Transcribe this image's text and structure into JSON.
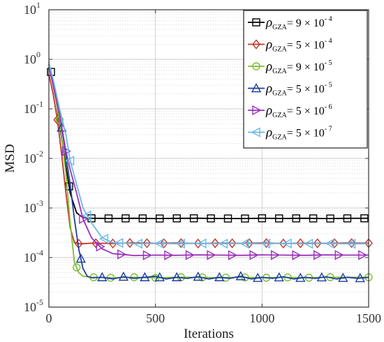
{
  "chart_data": {
    "type": "line",
    "xlabel": "Iterations",
    "ylabel": "MSD",
    "title": "",
    "xlim": [
      0,
      1500
    ],
    "ylim": [
      1e-05,
      10
    ],
    "yscale": "log",
    "grid": true,
    "legend_position": "top-right",
    "x_ticks": [
      {
        "value": 0,
        "label": "0"
      },
      {
        "value": 500,
        "label": "500"
      },
      {
        "value": 1000,
        "label": "1000"
      },
      {
        "value": 1500,
        "label": "1500"
      }
    ],
    "y_ticks": [
      {
        "value": 1e-05,
        "base": "10",
        "exp": "-5"
      },
      {
        "value": 0.0001,
        "base": "10",
        "exp": "-4"
      },
      {
        "value": 0.001,
        "base": "10",
        "exp": "-3"
      },
      {
        "value": 0.01,
        "base": "10",
        "exp": "-2"
      },
      {
        "value": 0.1,
        "base": "10",
        "exp": "-1"
      },
      {
        "value": 1,
        "base": "10",
        "exp": "0"
      },
      {
        "value": 10,
        "base": "10",
        "exp": "1"
      }
    ],
    "series": [
      {
        "name": "ρGZA = 9 × 10^-4",
        "label": {
          "rho": "ρ",
          "sub": "GZA",
          "mid": "= 9 ×  10",
          "exp": "- 4"
        },
        "color": "#000000",
        "marker": "square",
        "x": [
          0,
          5,
          20,
          40,
          60,
          80,
          100,
          130,
          160,
          200,
          300,
          400,
          500,
          600,
          700,
          800,
          900,
          1000,
          1100,
          1200,
          1300,
          1400,
          1500
        ],
        "y": [
          0.8,
          0.7,
          0.35,
          0.1,
          0.025,
          0.007,
          0.002,
          0.0008,
          0.00064,
          0.00062,
          0.000615,
          0.00062,
          0.000612,
          0.000618,
          0.00062,
          0.000615,
          0.000612,
          0.00062,
          0.000615,
          0.00062,
          0.000612,
          0.000618,
          0.00062
        ]
      },
      {
        "name": "ρGZA = 5 × 10^-4",
        "label": {
          "rho": "ρ",
          "sub": "GZA",
          "mid": "= 5 ×  10",
          "exp": "- 4"
        },
        "color": "#c0392b",
        "marker": "diamond",
        "x": [
          0,
          5,
          20,
          40,
          60,
          80,
          100,
          120,
          140,
          160,
          200,
          300,
          400,
          500,
          600,
          700,
          800,
          900,
          1000,
          1100,
          1200,
          1300,
          1400,
          1500
        ],
        "y": [
          0.5,
          0.4,
          0.2,
          0.06,
          0.012,
          0.002,
          0.0004,
          0.0002,
          0.00019,
          0.00019,
          0.000195,
          0.000192,
          0.000198,
          0.000193,
          0.000196,
          0.000192,
          0.000195,
          0.000193,
          0.000197,
          0.000192,
          0.000195,
          0.000193,
          0.000196,
          0.000195
        ]
      },
      {
        "name": "ρGZA = 9 × 10^-5",
        "label": {
          "rho": "ρ",
          "sub": "GZA",
          "mid": "= 9 ×  10",
          "exp": "- 5"
        },
        "color": "#7cbf2f",
        "marker": "circle",
        "x": [
          0,
          5,
          20,
          50,
          80,
          100,
          120,
          140,
          160,
          200,
          300,
          400,
          500,
          600,
          700,
          800,
          900,
          1000,
          1100,
          1200,
          1300,
          1400,
          1500
        ],
        "y": [
          0.7,
          0.6,
          0.3,
          0.06,
          0.005,
          0.0005,
          8e-05,
          5e-05,
          4.2e-05,
          4e-05,
          3.9e-05,
          4e-05,
          3.9e-05,
          4e-05,
          4e-05,
          3.9e-05,
          4e-05,
          3.9e-05,
          4e-05,
          3.9e-05,
          4e-05,
          4e-05,
          4e-05
        ]
      },
      {
        "name": "ρGZA = 5 × 10^-5",
        "label": {
          "rho": "ρ",
          "sub": "GZA",
          "mid": "= 5 ×  10",
          "exp": "- 5"
        },
        "color": "#1f3f9f",
        "marker": "triangle-up",
        "x": [
          0,
          5,
          20,
          50,
          70,
          100,
          120,
          140,
          160,
          180,
          200,
          250,
          300,
          350,
          400,
          450,
          500,
          550,
          600,
          650,
          700,
          750,
          800,
          850,
          900,
          950,
          1000,
          1050,
          1100,
          1150,
          1200,
          1250,
          1300,
          1350,
          1400,
          1450,
          1500
        ],
        "y": [
          0.7,
          0.6,
          0.3,
          0.08,
          0.022,
          0.003,
          0.0006,
          0.00015,
          6e-05,
          4.2e-05,
          3.9e-05,
          4e-05,
          3.7e-05,
          4.1e-05,
          3.8e-05,
          4e-05,
          4.2e-05,
          3.7e-05,
          4e-05,
          3.8e-05,
          4.1e-05,
          3.7e-05,
          4e-05,
          3.8e-05,
          4.2e-05,
          3.7e-05,
          4e-05,
          3.8e-05,
          4.1e-05,
          3.7e-05,
          4e-05,
          3.8e-05,
          4.1e-05,
          3.7e-05,
          4e-05,
          3.8e-05,
          4e-05
        ]
      },
      {
        "name": "ρGZA = 5 × 10^-6",
        "label": {
          "rho": "ρ",
          "sub": "GZA",
          "mid": "= 5 ×  10",
          "exp": "- 6"
        },
        "color": "#9b30b8",
        "marker": "triangle-right",
        "x": [
          0,
          5,
          20,
          50,
          80,
          100,
          130,
          160,
          200,
          250,
          300,
          350,
          400,
          500,
          600,
          700,
          800,
          900,
          1000,
          1100,
          1200,
          1300,
          1400,
          1500
        ],
        "y": [
          0.8,
          0.6,
          0.3,
          0.08,
          0.014,
          0.006,
          0.002,
          0.0006,
          0.00025,
          0.00015,
          0.00012,
          0.000115,
          0.00011,
          0.000112,
          0.000111,
          0.000113,
          0.000112,
          0.000111,
          0.000113,
          0.000112,
          0.000111,
          0.000113,
          0.000112,
          0.000112
        ]
      },
      {
        "name": "ρGZA = 5 × 10^-7",
        "label": {
          "rho": "ρ",
          "sub": "GZA",
          "mid": "= 5 ×  10",
          "exp": "- 7"
        },
        "color": "#6cb8e6",
        "marker": "triangle-left",
        "x": [
          0,
          5,
          20,
          50,
          80,
          100,
          130,
          160,
          200,
          250,
          300,
          350,
          400,
          500,
          600,
          700,
          800,
          900,
          1000,
          1100,
          1200,
          1300,
          1400,
          1500
        ],
        "y": [
          0.9,
          0.7,
          0.4,
          0.1,
          0.03,
          0.009,
          0.003,
          0.001,
          0.0005,
          0.00025,
          0.0002,
          0.000195,
          0.00019,
          0.000192,
          0.00019,
          0.000193,
          0.00019,
          0.000192,
          0.00019,
          0.000193,
          0.00019,
          0.000192,
          0.00019,
          0.00019
        ]
      }
    ],
    "markers_x": {
      "square": [
        10,
        95,
        200,
        280,
        360,
        440,
        520,
        600,
        680,
        760,
        840,
        920,
        1000,
        1080,
        1160,
        1240,
        1320,
        1400,
        1480
      ],
      "diamond": [
        40,
        140,
        220,
        300,
        380,
        460,
        540,
        620,
        700,
        780,
        860,
        940,
        1020,
        1100,
        1180,
        1260,
        1340,
        1420,
        1500
      ],
      "circle": [
        50,
        130,
        210,
        290,
        400,
        500,
        620,
        720,
        830,
        920,
        1020,
        1120,
        1220,
        1320,
        1500
      ],
      "triangle-up": [
        60,
        150,
        250,
        350,
        450,
        520,
        600,
        700,
        800,
        900,
        980,
        1080,
        1180,
        1280,
        1380,
        1460
      ],
      "triangle-right": [
        80,
        160,
        240,
        340,
        460,
        560,
        660,
        760,
        860,
        960,
        1060,
        1160,
        1260,
        1360,
        1470
      ],
      "triangle-left": [
        100,
        180,
        260,
        330,
        420,
        520,
        620,
        720,
        820,
        920,
        1020,
        1120,
        1220,
        1320,
        1420
      ]
    }
  }
}
